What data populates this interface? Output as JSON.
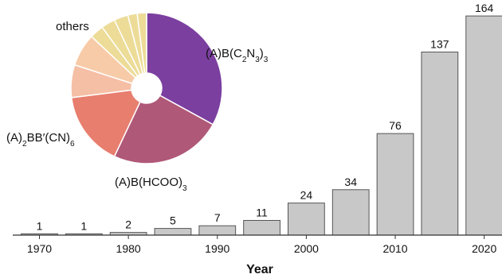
{
  "chart_data": [
    {
      "type": "bar",
      "x": [
        1970,
        1975,
        1980,
        1985,
        1990,
        1995,
        2000,
        2005,
        2010,
        2015,
        2020
      ],
      "values": [
        1,
        1,
        2,
        5,
        7,
        11,
        24,
        34,
        76,
        137,
        164
      ],
      "data_labels": [
        "1",
        "1",
        "2",
        "5",
        "7",
        "11",
        "24",
        "34",
        "76",
        "137",
        "164"
      ],
      "xticks": [
        "1970",
        "1980",
        "1990",
        "2000",
        "2010",
        "2020"
      ],
      "xlabel": "Year",
      "ylabel": "",
      "xlim": [
        1967,
        2022
      ],
      "ylim": [
        0,
        170
      ],
      "grid": false,
      "bar_color": "#c8c8c8",
      "bar_edge_color": "#555555"
    },
    {
      "type": "pie",
      "donut": true,
      "slices": [
        {
          "label_parts": [
            [
              "(A)B(C",
              ""
            ],
            [
              "2",
              "sub"
            ],
            [
              "N",
              ""
            ],
            [
              "3",
              "sub"
            ],
            [
              ")",
              ""
            ],
            [
              "3",
              "sub"
            ]
          ],
          "value": 33,
          "color": "#7b3fa0"
        },
        {
          "label_parts": [
            [
              "(A)B(HCOO)",
              ""
            ],
            [
              "3",
              "sub"
            ]
          ],
          "value": 24,
          "color": "#b05878"
        },
        {
          "label_parts": [
            [
              "(A)",
              ""
            ],
            [
              "2",
              "sub"
            ],
            [
              "BB′(CN)",
              ""
            ],
            [
              "6",
              "sub"
            ]
          ],
          "value": 16,
          "color": "#e87e6e"
        },
        {
          "label_parts": [],
          "value": 7,
          "color": "#f5bfa5"
        },
        {
          "label_parts": [],
          "value": 7,
          "color": "#f7cba8"
        },
        {
          "label_parts": [
            [
              "others",
              ""
            ]
          ],
          "value": 3,
          "color": "#ecdc98"
        },
        {
          "label_parts": [],
          "value": 3,
          "color": "#ecdc98"
        },
        {
          "label_parts": [],
          "value": 3,
          "color": "#ecdc98"
        },
        {
          "label_parts": [],
          "value": 2,
          "color": "#ecdc98"
        },
        {
          "label_parts": [],
          "value": 2,
          "color": "#ecdc98"
        }
      ]
    }
  ]
}
